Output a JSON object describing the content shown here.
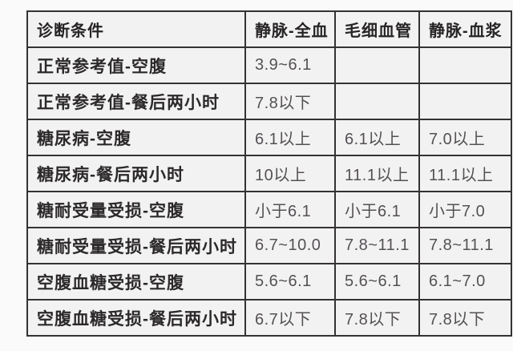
{
  "colors": {
    "page_background": "#fbfafa",
    "cell_background": "#f3f2f2",
    "border": "#343233",
    "header_text": "#262425",
    "label_text": "#2b292a",
    "value_text": "#545155"
  },
  "chart_data": {
    "type": "table",
    "title": "",
    "unit_hint": "",
    "columns": [
      "诊断条件",
      "静脉-全血",
      "毛细血管",
      "静脉-血浆"
    ],
    "rows": [
      {
        "label": "正常参考值-空腹",
        "values": [
          "3.9~6.1",
          "",
          ""
        ]
      },
      {
        "label": "正常参考值-餐后两小时",
        "values": [
          "7.8以下",
          "",
          ""
        ]
      },
      {
        "label": "糖尿病-空腹",
        "values": [
          "6.1以上",
          "6.1以上",
          "7.0以上"
        ]
      },
      {
        "label": "糖尿病-餐后两小时",
        "values": [
          "10以上",
          "11.1以上",
          "11.1以上"
        ]
      },
      {
        "label": "糖耐受量受损-空腹",
        "values": [
          "小于6.1",
          "小于6.1",
          "小于7.0"
        ]
      },
      {
        "label": "糖耐受量受损-餐后两小时",
        "values": [
          "6.7~10.0",
          "7.8~11.1",
          "7.8~11.1"
        ]
      },
      {
        "label": "空腹血糖受损-空腹",
        "values": [
          "5.6~6.1",
          "5.6~6.1",
          "6.1~7.0"
        ]
      },
      {
        "label": "空腹血糖受损-餐后两小时",
        "values": [
          "6.7以下",
          "7.8以下",
          "7.8以下"
        ]
      }
    ]
  }
}
